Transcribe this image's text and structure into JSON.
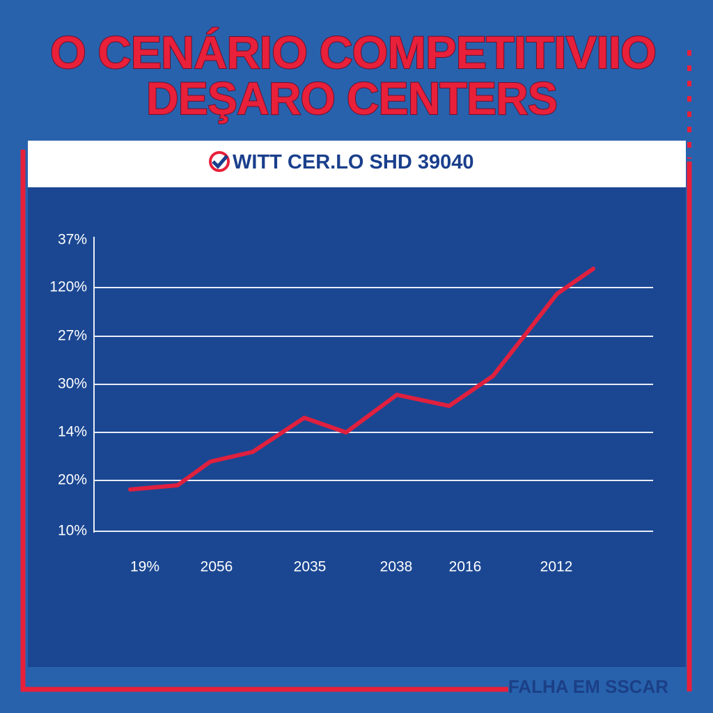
{
  "header": {
    "title_lines": [
      "O CENÁRIO COMPETITIVIIO",
      "DEŞARO CENTERS"
    ]
  },
  "panel": {
    "heading": "WITT CER.LO SHD 39040",
    "y_axis_labels": [
      "37%",
      "120%",
      "27%",
      "30%",
      "14%",
      "20%",
      "10%"
    ],
    "x_axis_labels": [
      "19%",
      "2056",
      "2035",
      "2038",
      "2016",
      "2012"
    ]
  },
  "footer": {
    "text": "FALHA EM SSCAR"
  }
}
